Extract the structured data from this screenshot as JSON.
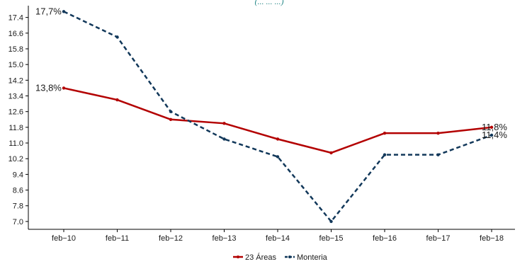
{
  "chart_data": {
    "type": "line",
    "title": "",
    "top_fragment": "(... ... ...)",
    "xlabel": "",
    "ylabel": "",
    "categories": [
      "feb−10",
      "feb−11",
      "feb−12",
      "feb−13",
      "feb−14",
      "feb−15",
      "feb−16",
      "feb−17",
      "feb−18"
    ],
    "series": [
      {
        "name": "23 Áreas",
        "color": "#b30000",
        "style": "solid",
        "values": [
          13.8,
          13.2,
          12.2,
          12.0,
          11.2,
          10.5,
          11.5,
          11.5,
          11.8
        ]
      },
      {
        "name": "Monteria",
        "color": "#12385a",
        "style": "dashed",
        "values": [
          17.7,
          16.4,
          12.6,
          11.2,
          10.3,
          7.0,
          10.4,
          10.4,
          11.4
        ]
      }
    ],
    "y_ticks": [
      "7.0",
      "7.8",
      "8.6",
      "9.4",
      "10.2",
      "11.0",
      "11.8",
      "12.6",
      "13.4",
      "14.2",
      "15.0",
      "15.8",
      "16.6",
      "17.4"
    ],
    "ylim": [
      6.6,
      18.0
    ],
    "annotations": [
      {
        "text": "17,7%",
        "series": 1,
        "index": 0
      },
      {
        "text": "13,8%",
        "series": 0,
        "index": 0
      },
      {
        "text": "11,8%",
        "series": 0,
        "index": 8
      },
      {
        "text": "11,4%",
        "series": 1,
        "index": 8
      }
    ],
    "grid": false,
    "legend_position": "bottom"
  }
}
